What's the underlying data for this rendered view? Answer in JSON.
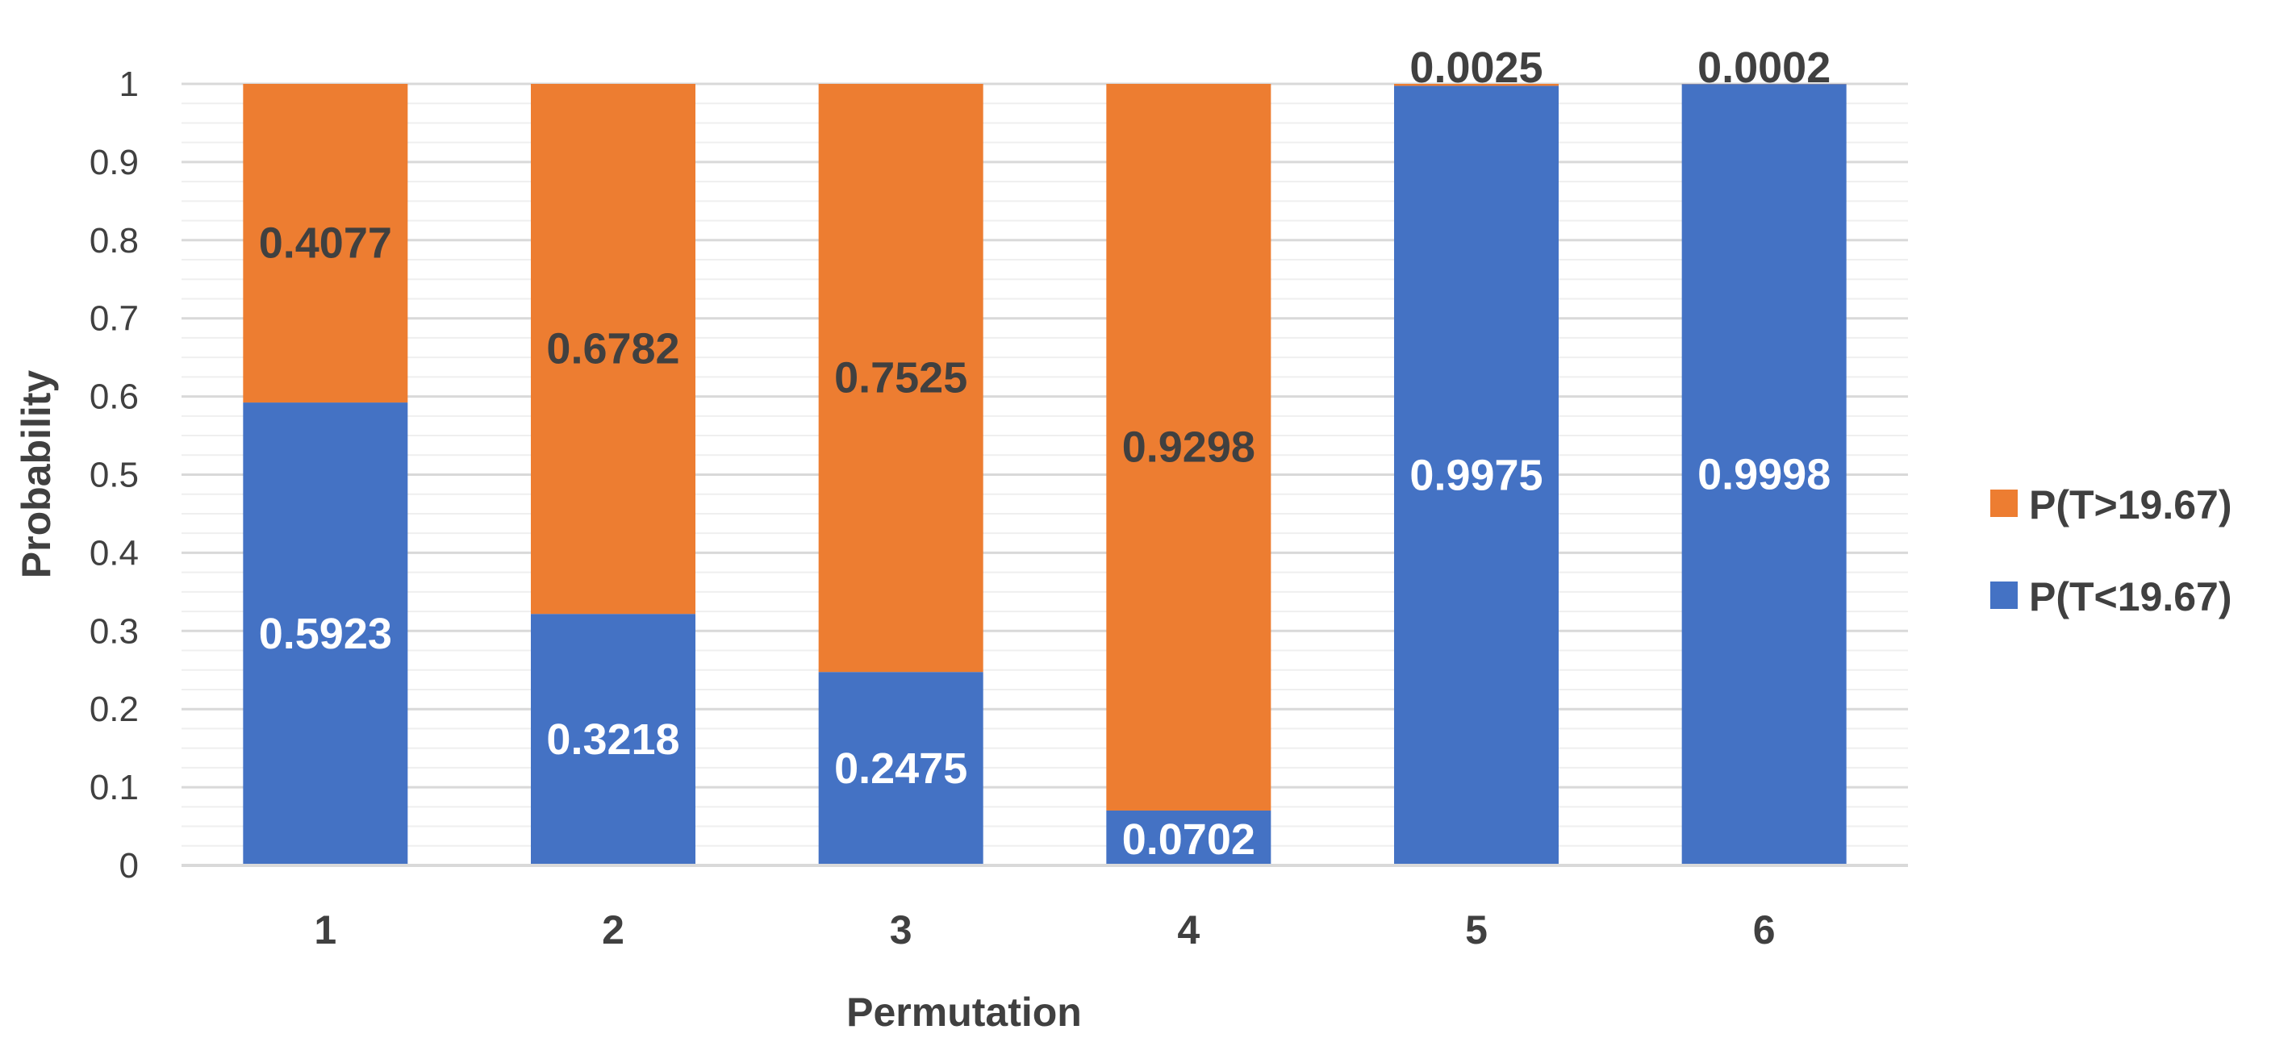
{
  "chart_data": {
    "type": "bar",
    "stacked": true,
    "title": "",
    "xlabel": "Permutation",
    "ylabel": "Probability",
    "categories": [
      "1",
      "2",
      "3",
      "4",
      "5",
      "6"
    ],
    "ylim": [
      0,
      1
    ],
    "y_ticks": [
      "0",
      "0.1",
      "0.2",
      "0.3",
      "0.4",
      "0.5",
      "0.6",
      "0.7",
      "0.8",
      "0.9",
      "1"
    ],
    "y_minor_step": 0.025,
    "grid": true,
    "legend_position": "right",
    "series": [
      {
        "name": "P(T<19.67)",
        "color": "#4472C4",
        "label_color": "#ffffff",
        "values": [
          0.5923,
          0.3218,
          0.2475,
          0.0702,
          0.9975,
          0.9998
        ],
        "labels": [
          "0.5923",
          "0.3218",
          "0.2475",
          "0.0702",
          "0.9975",
          "0.9998"
        ]
      },
      {
        "name": "P(T>19.67)",
        "color": "#ED7D31",
        "label_color": "#404040",
        "values": [
          0.4077,
          0.6782,
          0.7525,
          0.9298,
          0.0025,
          0.0002
        ],
        "labels": [
          "0.4077",
          "0.6782",
          "0.7525",
          "0.9298",
          "0.0025",
          "0.0002"
        ]
      }
    ],
    "legend_order": [
      "P(T>19.67)",
      "P(T<19.67)"
    ]
  }
}
